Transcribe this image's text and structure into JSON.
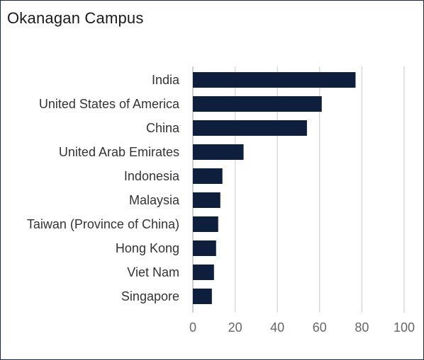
{
  "chart_data": {
    "type": "bar",
    "orientation": "horizontal",
    "title": "Okanagan Campus",
    "categories": [
      "India",
      "United States of America",
      "China",
      "United Arab Emirates",
      "Indonesia",
      "Malaysia",
      "Taiwan (Province of China)",
      "Hong Kong",
      "Viet Nam",
      "Singapore"
    ],
    "values": [
      77,
      61,
      54,
      24,
      14,
      13,
      12,
      11,
      10,
      9
    ],
    "xticks": [
      0,
      20,
      40,
      60,
      80,
      100
    ],
    "xlim": [
      0,
      100
    ],
    "grid": true,
    "colors": {
      "bar": "#0e1f3d",
      "grid": "#d9d9d9",
      "border": "#1a2a42"
    }
  }
}
